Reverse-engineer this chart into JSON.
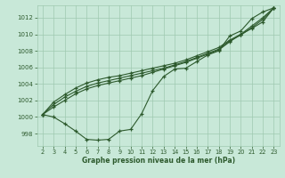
{
  "x_ticks": [
    2,
    3,
    4,
    5,
    6,
    7,
    8,
    9,
    10,
    11,
    12,
    13,
    14,
    15,
    16,
    17,
    18,
    19,
    20,
    21,
    22,
    23
  ],
  "xlim": [
    1.5,
    23.5
  ],
  "ylim": [
    996.5,
    1013.5
  ],
  "yticks": [
    998,
    1000,
    1002,
    1004,
    1006,
    1008,
    1010,
    1012
  ],
  "xlabel": "Graphe pression niveau de la mer (hPa)",
  "bg_color": "#c8e8d8",
  "grid_color": "#9fc9b0",
  "line_color": "#2d5a2d",
  "line1_x": [
    2,
    3,
    4,
    5,
    6,
    7,
    8,
    9,
    10,
    11,
    12,
    13,
    14,
    15,
    16,
    17,
    18,
    19,
    20,
    21,
    22,
    23
  ],
  "line1_y": [
    1000.3,
    1000.0,
    999.2,
    998.3,
    997.3,
    997.2,
    997.3,
    998.3,
    998.5,
    1000.4,
    1003.2,
    1004.9,
    1005.8,
    1005.9,
    1006.7,
    1007.5,
    1008.0,
    1009.8,
    1010.4,
    1011.9,
    1012.7,
    1013.2
  ],
  "line2_x": [
    2,
    3,
    4,
    5,
    6,
    7,
    8,
    9,
    10,
    11,
    12,
    13,
    14,
    15,
    16,
    17,
    18,
    19,
    20,
    21,
    22,
    23
  ],
  "line2_y": [
    1000.3,
    1001.2,
    1002.0,
    1002.8,
    1003.4,
    1003.8,
    1004.1,
    1004.4,
    1004.7,
    1005.0,
    1005.4,
    1005.8,
    1006.2,
    1006.6,
    1007.1,
    1007.6,
    1008.1,
    1009.1,
    1010.0,
    1011.0,
    1012.0,
    1013.2
  ],
  "line3_x": [
    2,
    3,
    4,
    5,
    6,
    7,
    8,
    9,
    10,
    11,
    12,
    13,
    14,
    15,
    16,
    17,
    18,
    19,
    20,
    21,
    22,
    23
  ],
  "line3_y": [
    1000.3,
    1001.5,
    1002.4,
    1003.1,
    1003.7,
    1004.1,
    1004.4,
    1004.7,
    1005.0,
    1005.3,
    1005.6,
    1005.9,
    1006.3,
    1006.7,
    1007.2,
    1007.7,
    1008.2,
    1009.2,
    1009.9,
    1010.8,
    1011.8,
    1013.2
  ],
  "line4_x": [
    2,
    3,
    4,
    5,
    6,
    7,
    8,
    9,
    10,
    11,
    12,
    13,
    14,
    15,
    16,
    17,
    18,
    19,
    20,
    21,
    22,
    23
  ],
  "line4_y": [
    1000.3,
    1001.8,
    1002.7,
    1003.5,
    1004.1,
    1004.5,
    1004.8,
    1005.0,
    1005.3,
    1005.6,
    1005.9,
    1006.2,
    1006.5,
    1006.9,
    1007.4,
    1007.9,
    1008.4,
    1009.3,
    1010.0,
    1010.7,
    1011.5,
    1013.2
  ]
}
